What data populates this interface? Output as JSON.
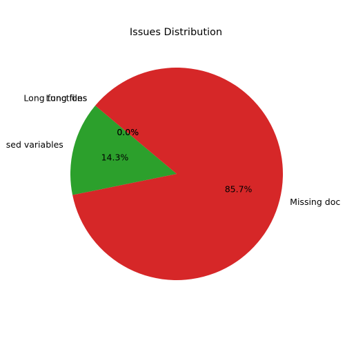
{
  "chart_data": {
    "type": "pie",
    "title": "Issues Distribution",
    "categories": [
      "Long files",
      "Long functions",
      "Unused variables",
      "Missing docs"
    ],
    "labels_visible": [
      "Long files",
      "Long functions",
      "sed variables",
      "Missing doc"
    ],
    "values": [
      0.0,
      0.0,
      14.3,
      85.7
    ],
    "percent_labels": [
      "0.0%",
      "0.0%",
      "14.3%",
      "85.7%"
    ],
    "colors": [
      "#1f77b4",
      "#ff7f0e",
      "#2ca02c",
      "#d62728"
    ],
    "start_angle_deg": 140,
    "direction": "counterclockwise"
  }
}
